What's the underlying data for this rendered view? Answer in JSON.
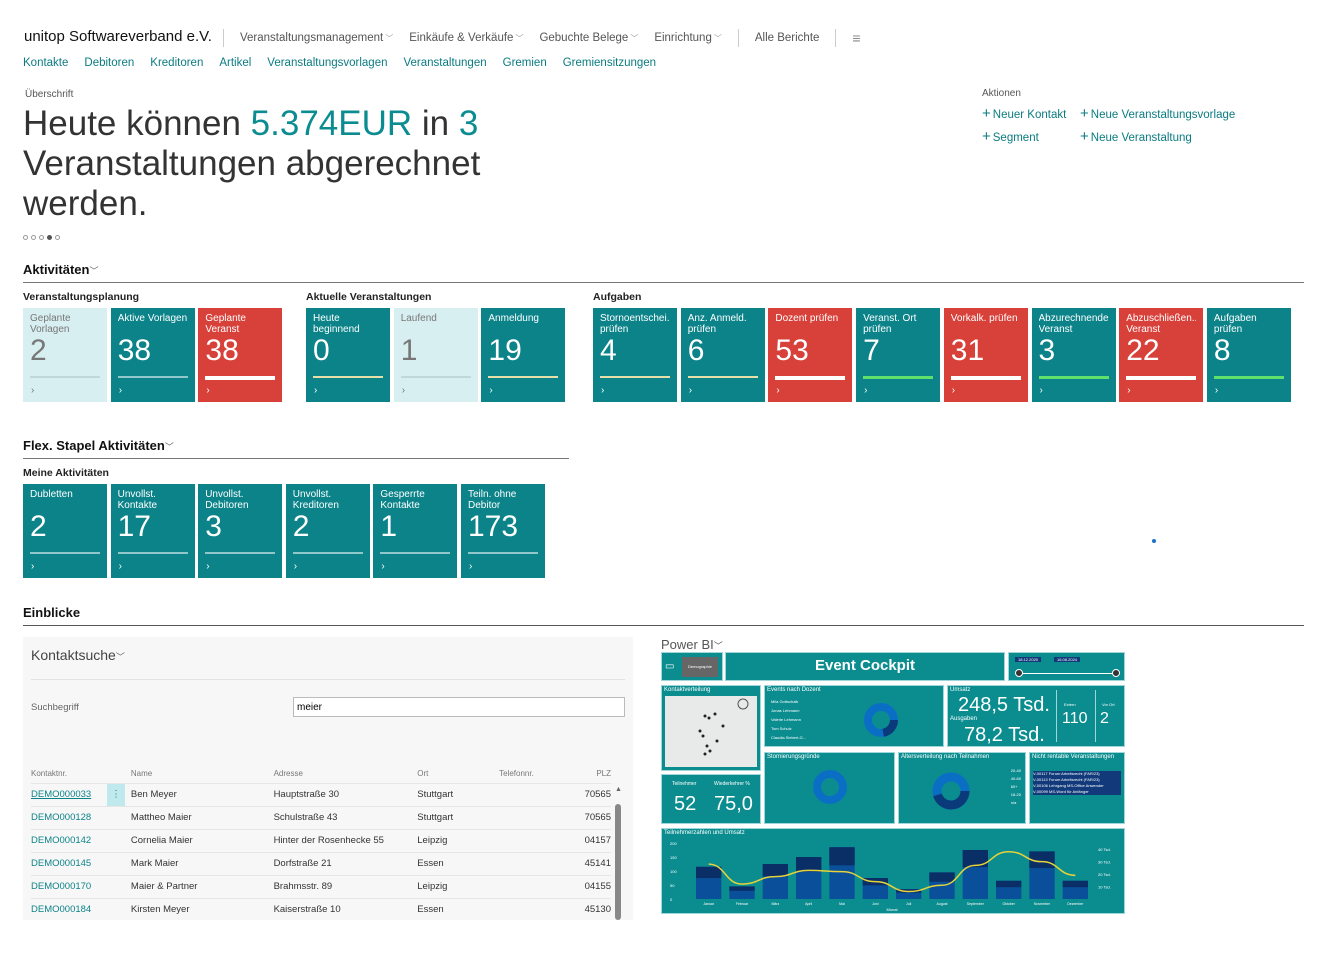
{
  "header": {
    "company": "unitop Softwareverband e.V.",
    "menus": [
      {
        "label": "Veranstaltungsmanagement"
      },
      {
        "label": "Einkäufe & Verkäufe"
      },
      {
        "label": "Gebuchte Belege"
      },
      {
        "label": "Einrichtung"
      }
    ],
    "all_reports": "Alle Berichte",
    "hamburger_icon": "hamburger-icon"
  },
  "subnav": [
    "Kontakte",
    "Debitoren",
    "Kreditoren",
    "Artikel",
    "Veranstaltungsvorlagen",
    "Veranstaltungen",
    "Gremien",
    "Gremiensitzungen"
  ],
  "headline": {
    "caption": "Überschrift",
    "pre": "Heute können ",
    "amount": "5.374EUR",
    "mid": " in ",
    "count": "3",
    "post": " Veranstaltungen abgerechnet werden.",
    "slide_index": 4,
    "slide_count": 5
  },
  "actions": {
    "caption": "Aktionen",
    "items": [
      "Neuer Kontakt",
      "Neue Veranstaltungsvorlage",
      "Segment",
      "Neue Veranstaltung"
    ]
  },
  "activities": {
    "title": "Aktivitäten",
    "groups": [
      {
        "title": "Veranstaltungsplanung",
        "tiles": [
          {
            "label": "Geplante Vorlagen",
            "value": "2",
            "style": "light",
            "bar": "normal"
          },
          {
            "label": "Aktive Vorlagen",
            "value": "38",
            "style": "teal",
            "bar": "normal"
          },
          {
            "label": "Geplante Veranst",
            "value": "38",
            "style": "red",
            "bar": "white"
          }
        ]
      },
      {
        "title": "Aktuelle Veranstaltungen",
        "tiles": [
          {
            "label": "Heute beginnend",
            "value": "0",
            "style": "teal",
            "bar": "yellow"
          },
          {
            "label": "Laufend",
            "value": "1",
            "style": "light",
            "bar": "normal"
          },
          {
            "label": "Anmeldung",
            "value": "19",
            "style": "teal",
            "bar": "yellow"
          }
        ]
      },
      {
        "title": "Aufgaben",
        "tiles": [
          {
            "label": "Stornoentschei... prüfen",
            "value": "4",
            "style": "teal",
            "bar": "yellow"
          },
          {
            "label": "Anz. Anmeld. prüfen",
            "value": "6",
            "style": "teal",
            "bar": "yellow"
          },
          {
            "label": "Dozent prüfen",
            "value": "53",
            "style": "red",
            "bar": "white"
          },
          {
            "label": "Veranst. Ort prüfen",
            "value": "7",
            "style": "teal",
            "bar": "green"
          },
          {
            "label": "Vorkalk. prüfen",
            "value": "31",
            "style": "red",
            "bar": "white"
          },
          {
            "label": "Abzurechnende Veranst",
            "value": "3",
            "style": "teal",
            "bar": "green"
          },
          {
            "label": "Abzuschließen... Veranst",
            "value": "22",
            "style": "red",
            "bar": "white"
          },
          {
            "label": "Aufgaben prüfen",
            "value": "8",
            "style": "teal",
            "bar": "green"
          }
        ]
      }
    ]
  },
  "flex": {
    "title": "Flex. Stapel Aktivitäten",
    "group": "Meine Aktivitäten",
    "tiles": [
      {
        "label": "Dubletten",
        "value": "2"
      },
      {
        "label": "Unvollst. Kontakte",
        "value": "17"
      },
      {
        "label": "Unvollst. Debitoren",
        "value": "3"
      },
      {
        "label": "Unvollst. Kreditoren",
        "value": "2"
      },
      {
        "label": "Gesperrte Kontakte",
        "value": "1"
      },
      {
        "label": "Teiln. ohne Debitor",
        "value": "173"
      }
    ]
  },
  "insights": {
    "title": "Einblicke"
  },
  "contact_search": {
    "title": "Kontaktsuche",
    "search_label": "Suchbegriff",
    "search_value": "meier",
    "columns": [
      "Kontaktnr.",
      "",
      "Name",
      "Adresse",
      "Ort",
      "Telefonnr.",
      "PLZ"
    ],
    "rows": [
      [
        "DEMO000033",
        "Ben Meyer",
        "Hauptstraße 30",
        "Stuttgart",
        "",
        "70565"
      ],
      [
        "DEMO000128",
        "Mattheo Maier",
        "Schulstraße 43",
        "Stuttgart",
        "",
        "70565"
      ],
      [
        "DEMO000142",
        "Cornelia Maier",
        "Hinter der Rosenhecke 55",
        "Leipzig",
        "",
        "04157"
      ],
      [
        "DEMO000145",
        "Mark Maier",
        "Dorfstraße 21",
        "Essen",
        "",
        "45141"
      ],
      [
        "DEMO000170",
        "Maier & Partner",
        "Brahmsstr. 89",
        "Leipzig",
        "",
        "04155"
      ],
      [
        "DEMO000184",
        "Kirsten Meyer",
        "Kaiserstraße 10",
        "Essen",
        "",
        "45130"
      ]
    ]
  },
  "powerbi": {
    "title": "Power BI",
    "report_title": "Event Cockpit",
    "demographie": "Demographie",
    "date_from": "18.12.2020",
    "date_to": "16.08.2024",
    "kontaktverteilung": "Kontaktverteilung",
    "events_nach_dozent": "Events nach Dozent",
    "dozenten": [
      "Mila Gottschalk",
      "Jonas Lehmann",
      "Valerie Lehmann",
      "Tom Schulz",
      "Claudia Siebert-G..."
    ],
    "umsatz_label": "Umsatz",
    "umsatz": "248,5 Tsd.",
    "ausgaben_label": "Ausgaben",
    "ausgaben": "78,2 Tsd.",
    "extern_label": "Extern",
    "extern": "110",
    "vorort_label": "Vor Ort",
    "vorort": "2",
    "teilnehmer_label": "Teilnehmer",
    "teilnehmer": "52",
    "wiederkehrer_label": "Wiederkehrer %",
    "wiederkehrer": "75,0",
    "storno_title": "Stornierungsgründe",
    "alter_title": "Altersverteilung nach Teilnahmen",
    "alter_legend": [
      "20-40",
      "40-60",
      "60+",
      "18-20",
      "n/a"
    ],
    "nicht_rentabel_title": "Nicht rentable Veranstaltungen",
    "nicht_rentabel": [
      [
        "V-00117",
        "Forum Arbeitsrecht (FAR/23)"
      ],
      [
        "V-00113",
        "Forum Arbeitsrecht (FAR/23)"
      ],
      [
        "V-00106",
        "Lehrgang MS-Office Anwender"
      ],
      [
        "V-00099",
        "MS-Word für Anfänger"
      ]
    ],
    "chart_data": {
      "type": "bar",
      "title": "Teilnehmerzahlen und Umsatz",
      "xlabel": "Monat",
      "ylabel": "Teilnehmer",
      "y2label": "Umsatz",
      "categories": [
        "Januar",
        "Februar",
        "März",
        "April",
        "Mai",
        "Juni",
        "Juli",
        "August",
        "September",
        "Oktober",
        "November",
        "Dezember"
      ],
      "bar_values": [
        115,
        45,
        125,
        150,
        185,
        75,
        35,
        95,
        175,
        65,
        170,
        65
      ],
      "line_values": [
        28,
        12,
        18,
        23,
        22,
        14,
        6,
        11,
        27,
        38,
        30,
        19
      ],
      "ylim": [
        0,
        200
      ],
      "yticks": [
        "0",
        "50",
        "100",
        "150",
        "200"
      ],
      "y2ticks": [
        "10 Tsd.",
        "20 Tsd.",
        "30 Tsd.",
        "40 Tsd."
      ],
      "colors": {
        "bar": "#0a4f9a",
        "line": "#e6d23a",
        "background": "#0b8d90"
      }
    }
  },
  "colors": {
    "teal": "#0b8389",
    "red": "#d8403a",
    "light": "#d8eff1",
    "accent": "#0a8c91"
  }
}
